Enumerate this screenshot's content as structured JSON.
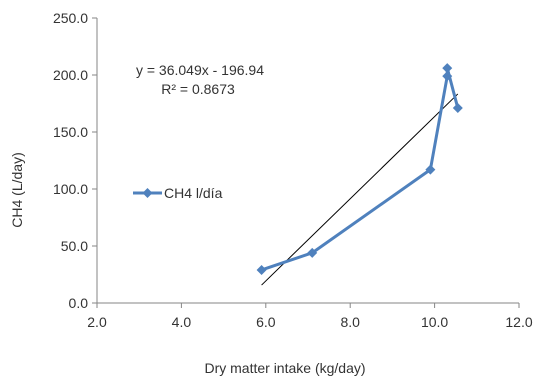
{
  "chart_data": {
    "type": "scatter",
    "title": "",
    "xlabel": "Dry matter intake (kg/day)",
    "ylabel": "CH4  (L/day)",
    "xlim": [
      2.0,
      12.0
    ],
    "ylim": [
      0.0,
      250.0
    ],
    "x_ticks": [
      "2.0",
      "4.0",
      "6.0",
      "8.0",
      "10.0",
      "12.0"
    ],
    "y_ticks": [
      "0.0",
      "50.0",
      "100.0",
      "150.0",
      "200.0",
      "250.0"
    ],
    "x_tick_values": [
      2,
      4,
      6,
      8,
      10,
      12
    ],
    "y_tick_values": [
      0,
      50,
      100,
      150,
      200,
      250
    ],
    "grid": false,
    "legend_position": "left-middle",
    "series": [
      {
        "name": "CH4 l/día",
        "color": "#4f81bd",
        "marker": "diamond",
        "points": [
          {
            "x": 5.9,
            "y": 29
          },
          {
            "x": 7.1,
            "y": 44
          },
          {
            "x": 9.9,
            "y": 117
          },
          {
            "x": 10.3,
            "y": 199
          },
          {
            "x": 10.3,
            "y": 206
          },
          {
            "x": 10.55,
            "y": 171
          }
        ]
      }
    ],
    "trendline": {
      "type": "linear",
      "slope": 36.049,
      "intercept": -196.94,
      "x_range": [
        5.9,
        10.55
      ],
      "color": "#000000",
      "equation_label": "y = 36.049x - 196.94",
      "r2_label": "R² = 0.8673"
    }
  }
}
